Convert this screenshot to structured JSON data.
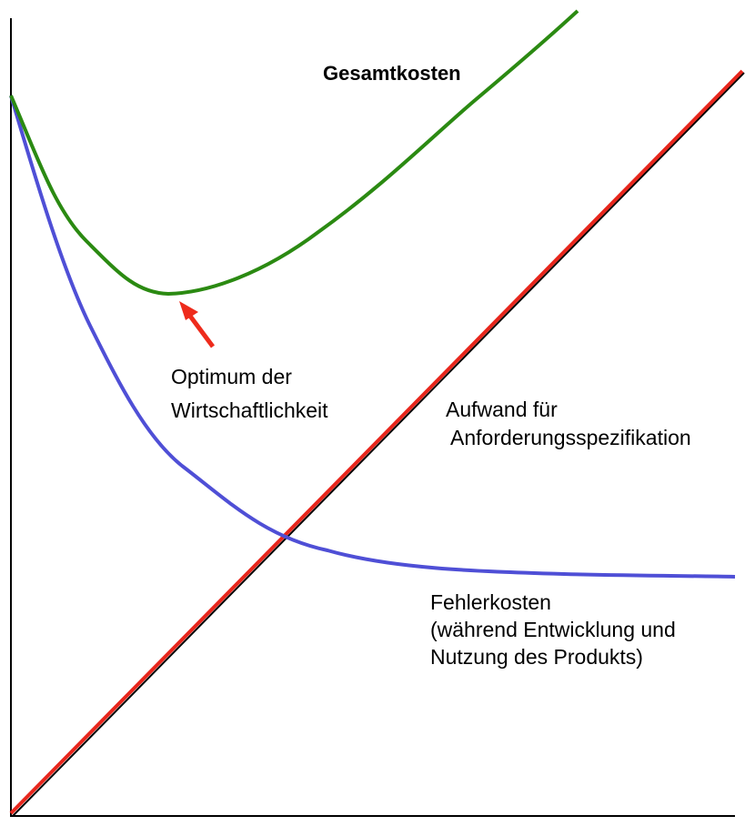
{
  "labels": {
    "total_costs": "Gesamtkosten",
    "optimum": [
      "Optimum der",
      "Wirtschaftlichkeit"
    ],
    "effort": [
      "Aufwand für",
      "Anforderungsspezifikation"
    ],
    "error_costs": [
      "Fehlerkosten",
      "(während Entwicklung und",
      "Nutzung des Produkts)"
    ]
  }
}
